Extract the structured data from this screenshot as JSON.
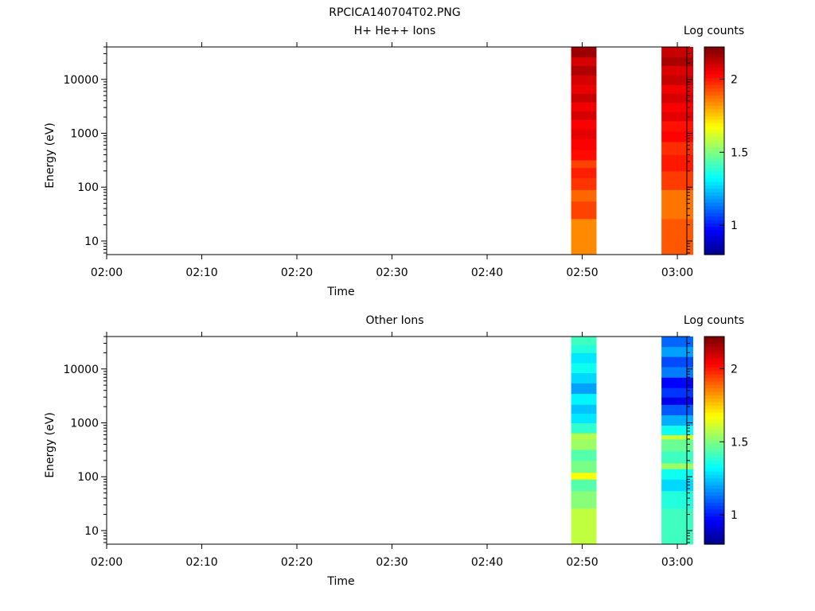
{
  "figure": {
    "title": "RPCICA140704T02.PNG"
  },
  "chart_data": [
    {
      "type": "heatmap",
      "title": "H+ He++ Ions",
      "xlabel": "Time",
      "ylabel": "Energy (eV)",
      "x_ticks": [
        "02:00",
        "02:10",
        "02:20",
        "02:30",
        "02:40",
        "02:50",
        "03:00"
      ],
      "xlim": [
        "02:00",
        "03:01"
      ],
      "y_scale": "log",
      "y_ticks": [
        "10",
        "100",
        "1000",
        "10000"
      ],
      "ylim": [
        5.6,
        40000
      ],
      "colorbar": {
        "label": "Log counts",
        "ticks": [
          "1",
          "1.5",
          "2"
        ],
        "range": [
          0.8,
          2.22
        ],
        "colormap": "jet"
      },
      "columns": [
        {
          "time_start": "02:48:50",
          "time_end": "02:51:30",
          "bins": [
            {
              "e_lo": 5.6,
              "e_hi": 26,
              "value": 1.85
            },
            {
              "e_lo": 26,
              "e_hi": 55,
              "value": 1.95
            },
            {
              "e_lo": 55,
              "e_hi": 90,
              "value": 1.9
            },
            {
              "e_lo": 90,
              "e_hi": 150,
              "value": 1.97
            },
            {
              "e_lo": 150,
              "e_hi": 230,
              "value": 2.0
            },
            {
              "e_lo": 230,
              "e_hi": 320,
              "value": 1.95
            },
            {
              "e_lo": 320,
              "e_hi": 500,
              "value": 2.03
            },
            {
              "e_lo": 500,
              "e_hi": 800,
              "value": 2.05
            },
            {
              "e_lo": 800,
              "e_hi": 1200,
              "value": 2.08
            },
            {
              "e_lo": 1200,
              "e_hi": 1800,
              "value": 2.05
            },
            {
              "e_lo": 1800,
              "e_hi": 2600,
              "value": 2.1
            },
            {
              "e_lo": 2600,
              "e_hi": 3800,
              "value": 2.06
            },
            {
              "e_lo": 3800,
              "e_hi": 5500,
              "value": 2.12
            },
            {
              "e_lo": 5500,
              "e_hi": 8000,
              "value": 2.07
            },
            {
              "e_lo": 8000,
              "e_hi": 12000,
              "value": 2.1
            },
            {
              "e_lo": 12000,
              "e_hi": 18000,
              "value": 2.15
            },
            {
              "e_lo": 18000,
              "e_hi": 26000,
              "value": 2.1
            },
            {
              "e_lo": 26000,
              "e_hi": 40000,
              "value": 2.18
            }
          ]
        },
        {
          "time_start": "02:58:20",
          "time_end": "03:01:40",
          "bins": [
            {
              "e_lo": 5.6,
              "e_hi": 26,
              "value": 1.92
            },
            {
              "e_lo": 26,
              "e_hi": 90,
              "value": 1.88
            },
            {
              "e_lo": 90,
              "e_hi": 200,
              "value": 1.96
            },
            {
              "e_lo": 200,
              "e_hi": 400,
              "value": 2.01
            },
            {
              "e_lo": 400,
              "e_hi": 700,
              "value": 1.98
            },
            {
              "e_lo": 700,
              "e_hi": 1100,
              "value": 2.04
            },
            {
              "e_lo": 1100,
              "e_hi": 1700,
              "value": 2.02
            },
            {
              "e_lo": 1700,
              "e_hi": 2500,
              "value": 2.08
            },
            {
              "e_lo": 2500,
              "e_hi": 3700,
              "value": 2.05
            },
            {
              "e_lo": 3700,
              "e_hi": 5500,
              "value": 2.1
            },
            {
              "e_lo": 5500,
              "e_hi": 8000,
              "value": 2.06
            },
            {
              "e_lo": 8000,
              "e_hi": 12000,
              "value": 2.12
            },
            {
              "e_lo": 12000,
              "e_hi": 18000,
              "value": 2.09
            },
            {
              "e_lo": 18000,
              "e_hi": 26000,
              "value": 2.16
            },
            {
              "e_lo": 26000,
              "e_hi": 40000,
              "value": 2.12
            }
          ]
        }
      ]
    },
    {
      "type": "heatmap",
      "title": "Other Ions",
      "xlabel": "Time",
      "ylabel": "Energy (eV)",
      "x_ticks": [
        "02:00",
        "02:10",
        "02:20",
        "02:30",
        "02:40",
        "02:50",
        "03:00"
      ],
      "xlim": [
        "02:00",
        "03:01"
      ],
      "y_scale": "log",
      "y_ticks": [
        "10",
        "100",
        "1000",
        "10000"
      ],
      "ylim": [
        5.6,
        40000
      ],
      "colorbar": {
        "label": "Log counts",
        "ticks": [
          "1",
          "1.5",
          "2"
        ],
        "range": [
          0.8,
          2.22
        ],
        "colormap": "jet"
      },
      "columns": [
        {
          "time_start": "02:48:50",
          "time_end": "02:51:30",
          "bins": [
            {
              "e_lo": 5.6,
              "e_hi": 26,
              "value": 1.6
            },
            {
              "e_lo": 26,
              "e_hi": 55,
              "value": 1.52
            },
            {
              "e_lo": 55,
              "e_hi": 90,
              "value": 1.45
            },
            {
              "e_lo": 90,
              "e_hi": 120,
              "value": 1.68
            },
            {
              "e_lo": 120,
              "e_hi": 200,
              "value": 1.5
            },
            {
              "e_lo": 200,
              "e_hi": 320,
              "value": 1.45
            },
            {
              "e_lo": 320,
              "e_hi": 500,
              "value": 1.55
            },
            {
              "e_lo": 500,
              "e_hi": 650,
              "value": 1.58
            },
            {
              "e_lo": 650,
              "e_hi": 1000,
              "value": 1.4
            },
            {
              "e_lo": 1000,
              "e_hi": 1500,
              "value": 1.3
            },
            {
              "e_lo": 1500,
              "e_hi": 2200,
              "value": 1.25
            },
            {
              "e_lo": 2200,
              "e_hi": 3500,
              "value": 1.32
            },
            {
              "e_lo": 3500,
              "e_hi": 5500,
              "value": 1.2
            },
            {
              "e_lo": 5500,
              "e_hi": 8500,
              "value": 1.28
            },
            {
              "e_lo": 8500,
              "e_hi": 13000,
              "value": 1.35
            },
            {
              "e_lo": 13000,
              "e_hi": 20000,
              "value": 1.3
            },
            {
              "e_lo": 20000,
              "e_hi": 28000,
              "value": 1.38
            },
            {
              "e_lo": 28000,
              "e_hi": 40000,
              "value": 1.42
            }
          ]
        },
        {
          "time_start": "02:58:20",
          "time_end": "03:01:40",
          "bins": [
            {
              "e_lo": 5.6,
              "e_hi": 26,
              "value": 1.42
            },
            {
              "e_lo": 26,
              "e_hi": 55,
              "value": 1.38
            },
            {
              "e_lo": 55,
              "e_hi": 90,
              "value": 1.28
            },
            {
              "e_lo": 90,
              "e_hi": 140,
              "value": 1.35
            },
            {
              "e_lo": 140,
              "e_hi": 180,
              "value": 1.55
            },
            {
              "e_lo": 180,
              "e_hi": 300,
              "value": 1.42
            },
            {
              "e_lo": 300,
              "e_hi": 500,
              "value": 1.48
            },
            {
              "e_lo": 500,
              "e_hi": 600,
              "value": 1.62
            },
            {
              "e_lo": 600,
              "e_hi": 900,
              "value": 1.35
            },
            {
              "e_lo": 900,
              "e_hi": 1400,
              "value": 1.22
            },
            {
              "e_lo": 1400,
              "e_hi": 2200,
              "value": 1.1
            },
            {
              "e_lo": 2200,
              "e_hi": 3000,
              "value": 0.95
            },
            {
              "e_lo": 3000,
              "e_hi": 4500,
              "value": 1.05
            },
            {
              "e_lo": 4500,
              "e_hi": 7000,
              "value": 0.98
            },
            {
              "e_lo": 7000,
              "e_hi": 11000,
              "value": 1.15
            },
            {
              "e_lo": 11000,
              "e_hi": 17000,
              "value": 1.08
            },
            {
              "e_lo": 17000,
              "e_hi": 26000,
              "value": 1.2
            },
            {
              "e_lo": 26000,
              "e_hi": 40000,
              "value": 1.12
            }
          ]
        }
      ]
    }
  ]
}
